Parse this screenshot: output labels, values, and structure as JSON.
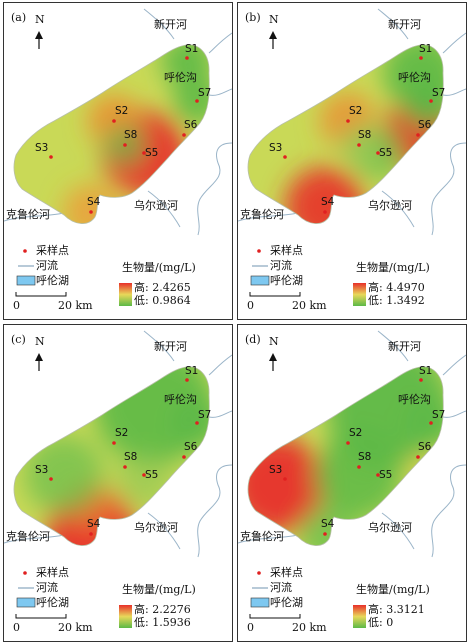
{
  "panels": [
    {
      "id": "a",
      "label": "(a)",
      "legend": {
        "high": "高: 2.4265",
        "low": "低: 0.9864"
      },
      "variant": "a"
    },
    {
      "id": "b",
      "label": "(b)",
      "legend": {
        "high": "高: 4.4970",
        "low": "低: 1.3492"
      },
      "variant": "b"
    },
    {
      "id": "c",
      "label": "(c)",
      "legend": {
        "high": "高: 2.2276",
        "low": "低: 1.5936"
      },
      "variant": "c"
    },
    {
      "id": "d",
      "label": "(d)",
      "legend": {
        "high": "高: 3.3121",
        "low": "低: 0"
      },
      "variant": "d"
    }
  ],
  "north_label": "N",
  "rivers": {
    "xinkai": "新开河",
    "hulun_gou": "呼伦沟",
    "kelulun": "克鲁伦河",
    "wuerxun": "乌尔逊河"
  },
  "sites": [
    "S1",
    "S2",
    "S3",
    "S4",
    "S5",
    "S6",
    "S7",
    "S8"
  ],
  "legend": {
    "sample_point": "采样点",
    "river": "河流",
    "lake": "呼伦湖",
    "title": "生物量/(mg/L)"
  },
  "scale": {
    "zero": "0",
    "distance": "20 km"
  },
  "colors": {
    "high": "#e8302a",
    "mid": "#e8d85a",
    "low": "#5cb947",
    "point": "#e02020",
    "river": "#9ab4c8",
    "lake_legend": "#7ec8f0"
  }
}
